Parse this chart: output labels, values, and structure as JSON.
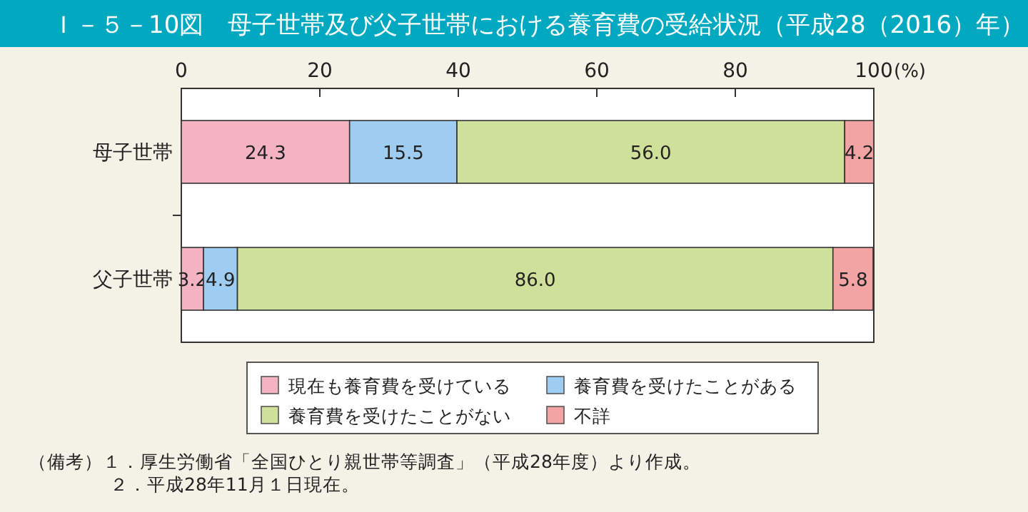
{
  "chart_data": {
    "type": "bar",
    "orientation": "horizontal",
    "stacked": true,
    "title": "Ｉ－５－10図　母子世帯及び父子世帯における養育費の受給状況（平成28（2016）年）",
    "categories": [
      "母子世帯",
      "父子世帯"
    ],
    "series": [
      {
        "name": "現在も養育費を受けている",
        "color": "#f4b3c2",
        "values": [
          24.3,
          3.2
        ],
        "value_labels": [
          "24.3",
          "3.2"
        ]
      },
      {
        "name": "養育費を受けたことがある",
        "color": "#9fcdf2",
        "values": [
          15.5,
          4.9
        ],
        "value_labels": [
          "15.5",
          "4.9"
        ]
      },
      {
        "name": "養育費を受けたことがない",
        "color": "#cfe09a",
        "values": [
          56.0,
          86.0
        ],
        "value_labels": [
          "56.0",
          "86.0"
        ]
      },
      {
        "name": "不詳",
        "color": "#f2a4a4",
        "values": [
          4.2,
          5.8
        ],
        "value_labels": [
          "4.2",
          "5.8"
        ]
      }
    ],
    "xlim": [
      0,
      100
    ],
    "xticks": [
      0,
      20,
      40,
      60,
      80,
      100
    ],
    "xlabel": "(%)",
    "legend": "bottom",
    "grid": false,
    "annotations": [
      "（備考）１．厚生労働省「全国ひとり親世帯等調査」（平成28年度）より作成。",
      "２．平成28年11月１日現在。"
    ]
  }
}
